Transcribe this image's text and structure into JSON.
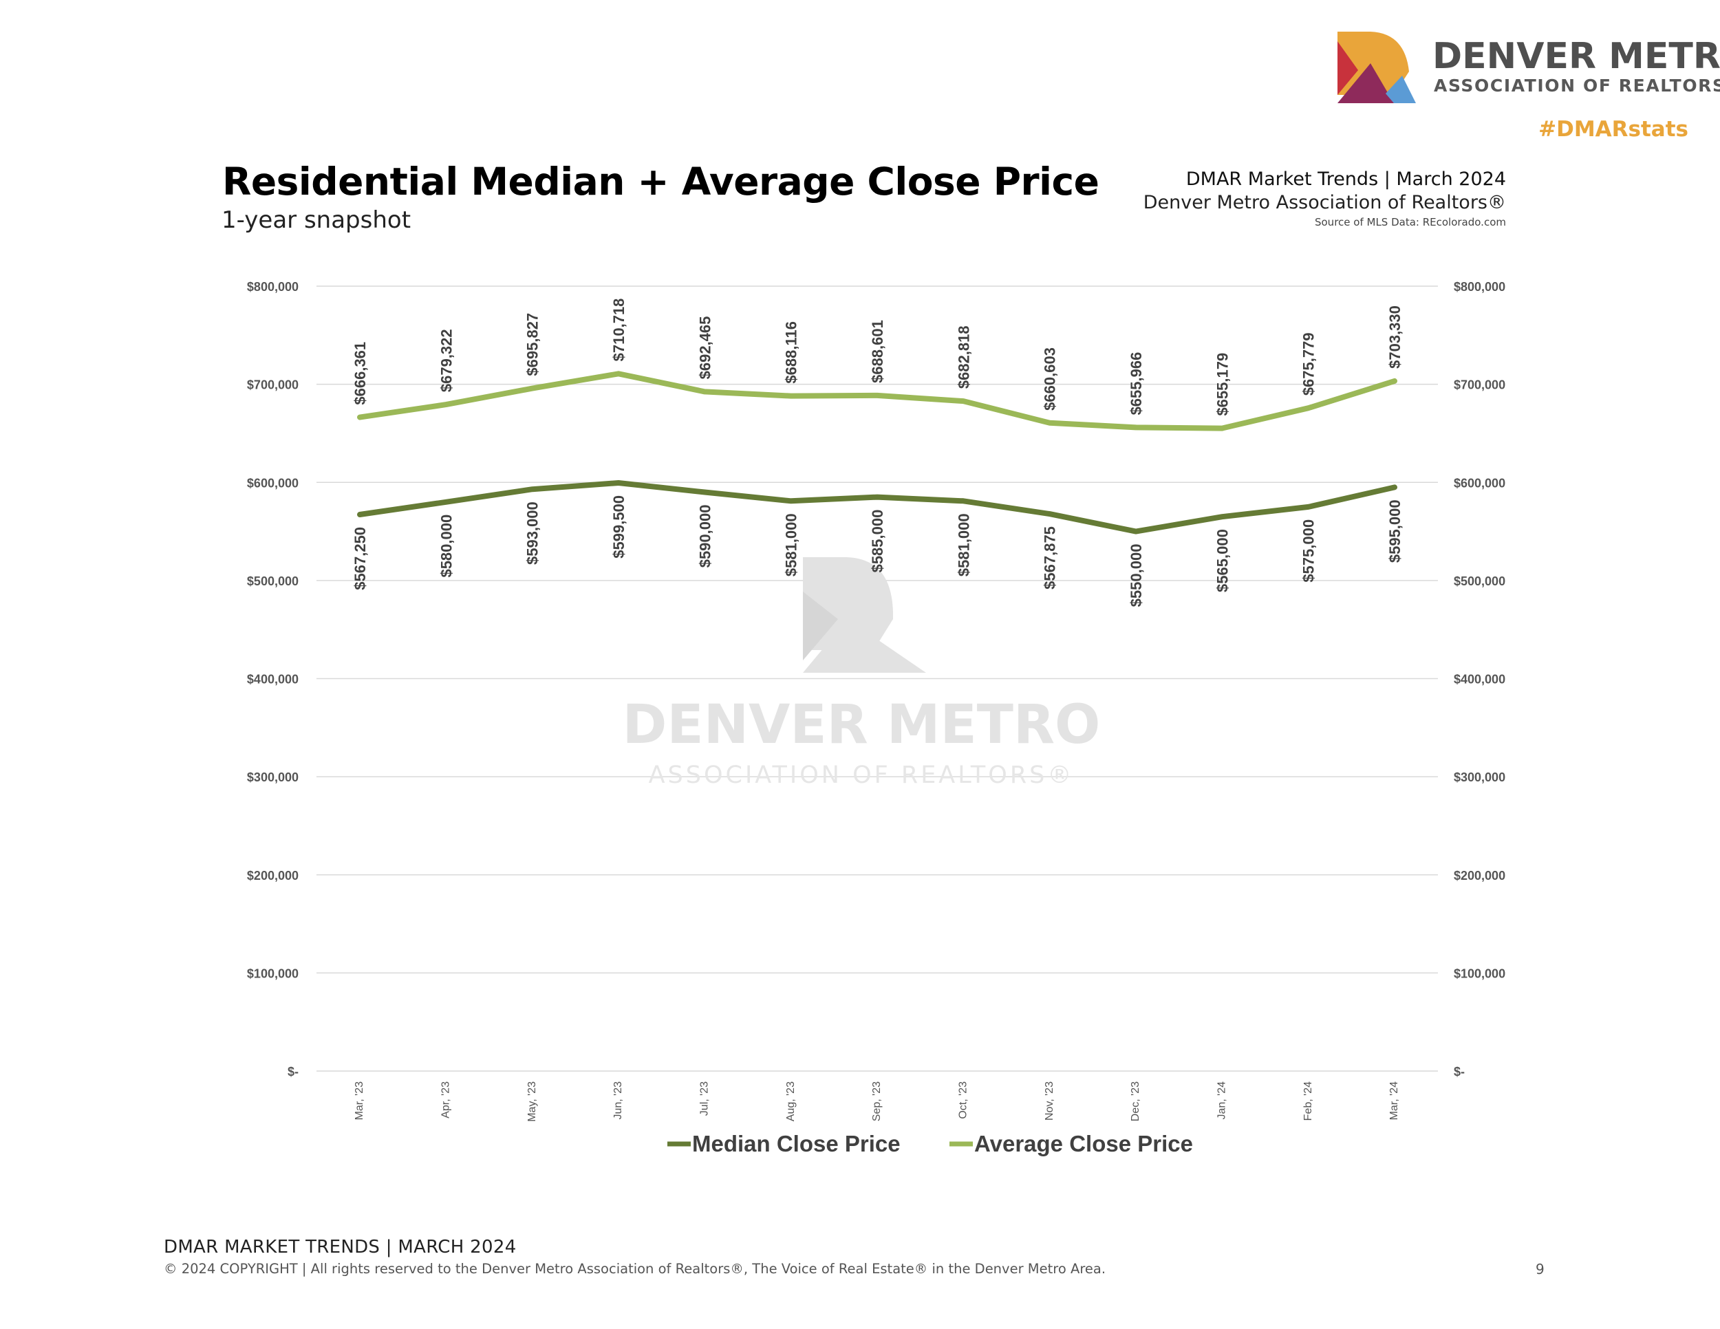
{
  "brand": {
    "logo_line1": "DENVER METRO",
    "logo_line2": "ASSOCIATION OF REALTORS®",
    "hashtag": "#DMARstats",
    "colors": {
      "orange": "#e9a53a",
      "red": "#c8323c",
      "plum": "#8e2a5b",
      "blue": "#5b9bd5",
      "gray": "#4f4f4f"
    }
  },
  "header": {
    "title": "Residential Median + Average Close Price",
    "subtitle": "1-year snapshot",
    "report_name": "DMAR Market Trends | March 2024",
    "org_name": "Denver Metro Association of Realtors®",
    "source_note": "Source of MLS Data: REcolorado.com"
  },
  "watermark": {
    "line1": "DENVER METRO",
    "line2": "ASSOCIATION OF REALTORS®"
  },
  "chart_data": {
    "type": "line",
    "title": "Residential Median + Average Close Price",
    "xlabel": "",
    "ylabel": "",
    "categories": [
      "Mar, '23",
      "Apr, '23",
      "May, '23",
      "Jun, '23",
      "Jul, '23",
      "Aug, '23",
      "Sep, '23",
      "Oct, '23",
      "Nov, '23",
      "Dec, '23",
      "Jan, '24",
      "Feb, '24",
      "Mar, '24"
    ],
    "ylim": [
      0,
      800000
    ],
    "yticks": [
      0,
      100000,
      200000,
      300000,
      400000,
      500000,
      600000,
      700000,
      800000
    ],
    "ytick_labels": [
      "$-",
      "$100,000",
      "$200,000",
      "$300,000",
      "$400,000",
      "$500,000",
      "$600,000",
      "$700,000",
      "$800,000"
    ],
    "grid": true,
    "legend_position": "bottom",
    "series": [
      {
        "name": "Median Close Price",
        "color": "#657b35",
        "label_side": "below",
        "values": [
          567250,
          580000,
          593000,
          599500,
          590000,
          581000,
          585000,
          581000,
          567875,
          550000,
          565000,
          575000,
          595000
        ],
        "labels": [
          "$567,250",
          "$580,000",
          "$593,000",
          "$599,500",
          "$590,000",
          "$581,000",
          "$585,000",
          "$581,000",
          "$567,875",
          "$550,000",
          "$565,000",
          "$575,000",
          "$595,000"
        ]
      },
      {
        "name": "Average Close Price",
        "color": "#9bb857",
        "label_side": "above",
        "values": [
          666361,
          679322,
          695827,
          710718,
          692465,
          688116,
          688601,
          682818,
          660603,
          655966,
          655179,
          675779,
          703330
        ],
        "labels": [
          "$666,361",
          "$679,322",
          "$695,827",
          "$710,718",
          "$692,465",
          "$688,116",
          "$688,601",
          "$682,818",
          "$660,603",
          "$655,966",
          "$655,179",
          "$675,779",
          "$703,330"
        ]
      }
    ]
  },
  "footer": {
    "title": "DMAR MARKET TRENDS | MARCH 2024",
    "copyright": "© 2024 COPYRIGHT | All rights reserved to the Denver Metro Association of Realtors®, The Voice of Real Estate® in the Denver Metro Area.",
    "page_number": "9"
  }
}
